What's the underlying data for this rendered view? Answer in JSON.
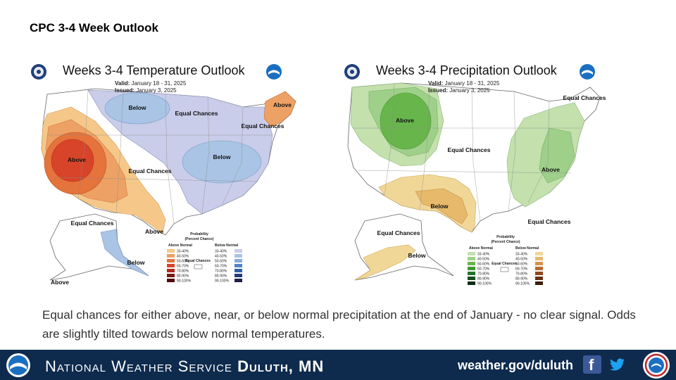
{
  "slide": {
    "title": "CPC 3-4 Week Outlook"
  },
  "temperature_map": {
    "title": "Weeks 3-4 Temperature Outlook",
    "valid_label": "Valid:",
    "valid": "January 18 - 31, 2025",
    "issued_label": "Issued:",
    "issued": "January 3, 2025",
    "region_labels": [
      "Below",
      "Equal Chances",
      "Above",
      "Equal Chances",
      "Above",
      "Below",
      "Equal Chances",
      "Above",
      "Equal Chances",
      "Below",
      "Above"
    ],
    "legend": {
      "title": "Probability",
      "subtitle": "(Percent Chance)",
      "above_header": "Above Normal",
      "below_header": "Below Normal",
      "equal_label": "Equal Chances",
      "ranges": [
        "33-40%",
        "40-50%",
        "50-60%",
        "60-70%",
        "70-80%",
        "80-90%",
        "90-100%"
      ],
      "above_colors": [
        "#f5c88a",
        "#eea165",
        "#e4733c",
        "#d8442a",
        "#b02820",
        "#7a1814",
        "#4a0c0a"
      ],
      "below_colors": [
        "#c9cde9",
        "#a9c4e4",
        "#86acdb",
        "#4f86c7",
        "#2f5fa8",
        "#223b7e",
        "#1d1f4a"
      ]
    },
    "colors": {
      "above_light": "#f5c88a",
      "above_mid": "#eea165",
      "above_dark": "#e4733c",
      "above_strong": "#d8442a",
      "below_light": "#c9cde9",
      "below_mid": "#a9c4e4"
    }
  },
  "precipitation_map": {
    "title": "Weeks 3-4 Precipitation Outlook",
    "valid_label": "Valid:",
    "valid": "January 18 - 31, 2025",
    "issued_label": "Issued:",
    "issued": "January 3, 2025",
    "region_labels": [
      "Above",
      "Equal Chances",
      "Equal Chances",
      "Above",
      "Below",
      "Equal Chances",
      "Equal Chances",
      "Below"
    ],
    "legend": {
      "title": "Probability",
      "subtitle": "(Percent Chance)",
      "above_header": "Above Normal",
      "below_header": "Below Normal",
      "equal_label": "Equal Chances",
      "ranges": [
        "33-40%",
        "40-50%",
        "50-60%",
        "60-70%",
        "70-80%",
        "80-90%",
        "90-100%"
      ],
      "above_colors": [
        "#c3e0ad",
        "#9fd08a",
        "#68b54c",
        "#3d9a32",
        "#23742a",
        "#174d20",
        "#0d2e14"
      ],
      "below_colors": [
        "#f1d797",
        "#e6b96b",
        "#d99245",
        "#b86b2b",
        "#8d4a1d",
        "#633213",
        "#3c1d0b"
      ]
    },
    "colors": {
      "above_light": "#c3e0ad",
      "above_mid": "#9fd08a",
      "above_dark": "#68b54c",
      "below_light": "#f1d797",
      "below_mid": "#e6b96b"
    }
  },
  "caption": "Equal chances for either above, near, or below normal precipitation at the end of January - no clear signal. Odds are slightly tilted towards below normal temperatures.",
  "footer": {
    "org": "National Weather Service",
    "office": "Duluth, MN",
    "url": "weather.gov/duluth",
    "colors": {
      "background": "#0e2a4d",
      "facebook": "#3b5998",
      "twitter": "#1da1f2"
    }
  }
}
